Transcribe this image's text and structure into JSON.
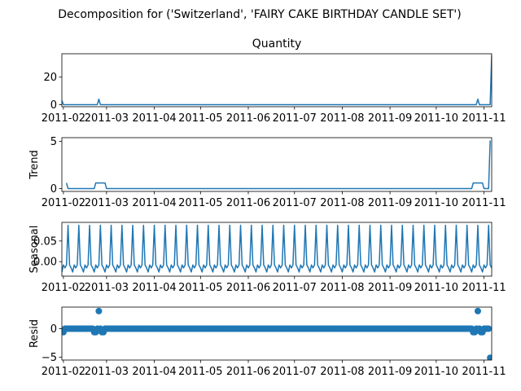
{
  "suptitle": "Decomposition for ('Switzerland', 'FAIRY CAKE BIRTHDAY CANDLE SET')",
  "colors": {
    "line": "#1f77b4",
    "axis": "#000000",
    "background": "#ffffff"
  },
  "chart_data": [
    {
      "type": "line",
      "title": "Quantity",
      "ylabel": "",
      "x_ticks": [
        "2011-02",
        "2011-03",
        "2011-04",
        "2011-05",
        "2011-06",
        "2011-07",
        "2011-08",
        "2011-09",
        "2011-10",
        "2011-11"
      ],
      "y_ticks": [
        0,
        20
      ],
      "xlim": [
        "2011-01-31",
        "2011-11-06"
      ],
      "ylim": [
        -1.5,
        37
      ],
      "grid": false,
      "series": [
        {
          "x": [
            "2011-01-31",
            "2011-02-01",
            "2011-02-23",
            "2011-02-24",
            "2011-02-25",
            "2011-10-27",
            "2011-10-28",
            "2011-10-29",
            "2011-11-05",
            "2011-11-06"
          ],
          "y": [
            3,
            0,
            0,
            4,
            0,
            0,
            4,
            0,
            0,
            36
          ]
        }
      ]
    },
    {
      "type": "line",
      "title": "",
      "ylabel": "Trend",
      "x_ticks": [
        "2011-02",
        "2011-03",
        "2011-04",
        "2011-05",
        "2011-06",
        "2011-07",
        "2011-08",
        "2011-09",
        "2011-10",
        "2011-11"
      ],
      "y_ticks": [
        0,
        5
      ],
      "xlim": [
        "2011-01-31",
        "2011-11-06"
      ],
      "ylim": [
        -0.3,
        5.4
      ],
      "grid": false,
      "series": [
        {
          "x": [
            "2011-02-03",
            "2011-02-04",
            "2011-02-21",
            "2011-02-22",
            "2011-02-28",
            "2011-03-01",
            "2011-10-24",
            "2011-10-25",
            "2011-10-31",
            "2011-11-01",
            "2011-11-04",
            "2011-11-05"
          ],
          "y": [
            0.6,
            0,
            0,
            0.6,
            0.6,
            0,
            0,
            0.6,
            0.6,
            0,
            0,
            5.1
          ]
        }
      ]
    },
    {
      "type": "line",
      "title": "",
      "ylabel": "Seasonal",
      "x_ticks": [
        "2011-02",
        "2011-03",
        "2011-04",
        "2011-05",
        "2011-06",
        "2011-07",
        "2011-08",
        "2011-09",
        "2011-10",
        "2011-11"
      ],
      "y_ticks": [
        0.0,
        0.05
      ],
      "xlim": [
        "2011-01-31",
        "2011-11-06"
      ],
      "ylim": [
        -0.035,
        0.095
      ],
      "grid": false,
      "period_days": 7,
      "pattern": [
        -0.025,
        -0.008,
        -0.015,
        -0.008,
        0.088,
        -0.008,
        -0.015
      ],
      "series": []
    },
    {
      "type": "scatter",
      "title": "",
      "ylabel": "Resid",
      "x_ticks": [
        "2011-02",
        "2011-03",
        "2011-04",
        "2011-05",
        "2011-06",
        "2011-07",
        "2011-08",
        "2011-09",
        "2011-10",
        "2011-11"
      ],
      "y_ticks": [
        -5,
        0
      ],
      "xlim": [
        "2011-01-31",
        "2011-11-06"
      ],
      "ylim": [
        -5.5,
        3.8
      ],
      "grid": false,
      "outliers": [
        {
          "x": "2011-02-01",
          "y": -0.6
        },
        {
          "x": "2011-02-21",
          "y": -0.6
        },
        {
          "x": "2011-02-22",
          "y": -0.6
        },
        {
          "x": "2011-02-24",
          "y": 3.1
        },
        {
          "x": "2011-02-26",
          "y": -0.6
        },
        {
          "x": "2011-02-27",
          "y": -0.6
        },
        {
          "x": "2011-10-25",
          "y": -0.6
        },
        {
          "x": "2011-10-26",
          "y": -0.6
        },
        {
          "x": "2011-10-28",
          "y": 3.1
        },
        {
          "x": "2011-10-30",
          "y": -0.6
        },
        {
          "x": "2011-10-31",
          "y": -0.6
        },
        {
          "x": "2011-11-05",
          "y": -5.1
        }
      ],
      "series": []
    }
  ]
}
